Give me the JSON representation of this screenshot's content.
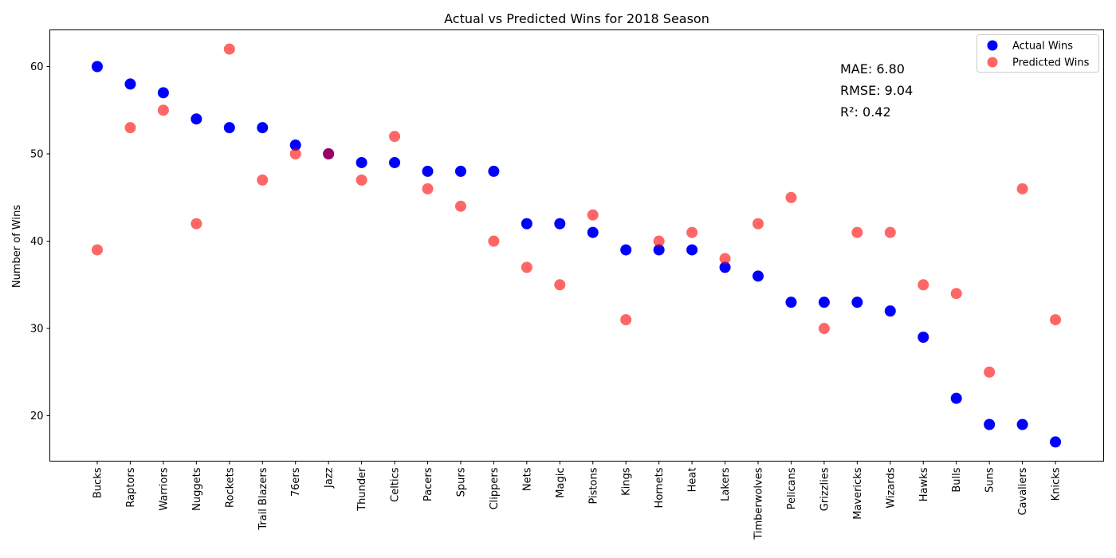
{
  "chart_data": {
    "type": "scatter",
    "title": "Actual vs Predicted Wins for 2018 Season",
    "xlabel": "",
    "ylabel": "Number of Wins",
    "ylim": [
      14.8,
      64.2
    ],
    "yticks": [
      20,
      30,
      40,
      50,
      60
    ],
    "grid": false,
    "legend_position": "top-right",
    "categories": [
      "Bucks",
      "Raptors",
      "Warriors",
      "Nuggets",
      "Rockets",
      "Trail Blazers",
      "76ers",
      "Jazz",
      "Thunder",
      "Celtics",
      "Pacers",
      "Spurs",
      "Clippers",
      "Nets",
      "Magic",
      "Pistons",
      "Kings",
      "Hornets",
      "Heat",
      "Lakers",
      "Timberwolves",
      "Pelicans",
      "Grizzlies",
      "Mavericks",
      "Wizards",
      "Hawks",
      "Bulls",
      "Suns",
      "Cavaliers",
      "Knicks"
    ],
    "series": [
      {
        "name": "Actual Wins",
        "color": "#0000ff",
        "opacity": 1.0,
        "values": [
          60,
          58,
          57,
          54,
          53,
          53,
          51,
          50,
          49,
          49,
          48,
          48,
          48,
          42,
          42,
          41,
          39,
          39,
          39,
          37,
          36,
          33,
          33,
          33,
          32,
          29,
          22,
          19,
          19,
          17
        ]
      },
      {
        "name": "Predicted Wins",
        "color": "#ff0000",
        "opacity": 0.6,
        "values": [
          39,
          53,
          55,
          42,
          62,
          47,
          50,
          50,
          47,
          52,
          46,
          44,
          40,
          37,
          35,
          43,
          31,
          40,
          41,
          38,
          42,
          45,
          30,
          41,
          41,
          35,
          34,
          25,
          46,
          31
        ]
      }
    ],
    "annotations": [
      "MAE: 6.80",
      "RMSE: 9.04",
      "R²: 0.42"
    ]
  }
}
